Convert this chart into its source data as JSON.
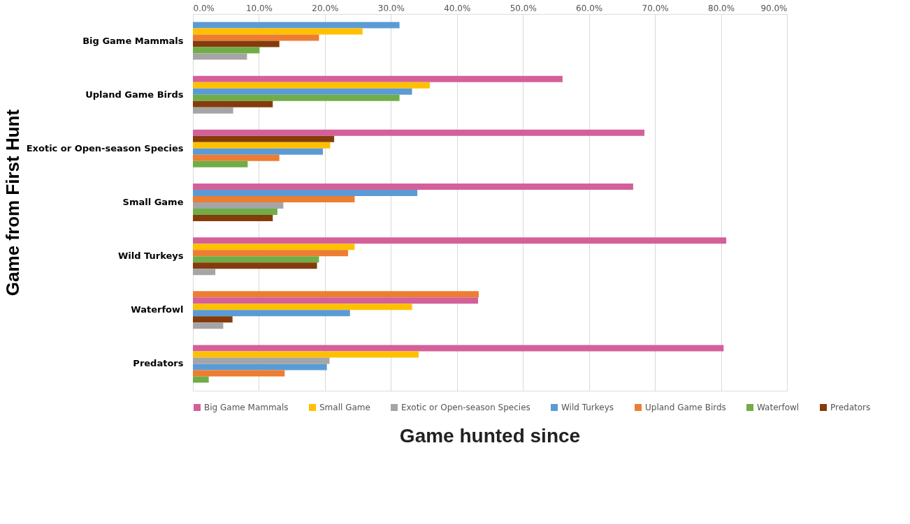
{
  "chart_data": {
    "type": "bar",
    "orientation": "horizontal",
    "xlabel": "Game hunted since",
    "ylabel": "Game from First Hunt",
    "categories": [
      "Big Game Mammals",
      "Upland Game Birds",
      "Exotic or Open-season Species",
      "Small Game",
      "Wild Turkeys",
      "Waterfowl",
      "Predators"
    ],
    "series": [
      {
        "name": "Big Game Mammals",
        "color": "#d4609a",
        "values": [
          null,
          56.0,
          68.4,
          66.7,
          80.8,
          43.2,
          80.4
        ]
      },
      {
        "name": "Small Game",
        "color": "#ffc000",
        "values": [
          25.7,
          35.9,
          20.8,
          null,
          24.5,
          33.2,
          34.2
        ]
      },
      {
        "name": "Exotic or Open-season Species",
        "color": "#a5a5a5",
        "values": [
          8.2,
          6.1,
          null,
          13.7,
          3.4,
          4.6,
          20.7
        ]
      },
      {
        "name": "Wild Turkeys",
        "color": "#5b9bd5",
        "values": [
          31.3,
          33.2,
          19.7,
          34.0,
          null,
          23.8,
          20.3
        ]
      },
      {
        "name": "Upland Game Birds",
        "color": "#ed7d31",
        "values": [
          19.1,
          null,
          13.1,
          24.5,
          23.5,
          43.3,
          13.9
        ]
      },
      {
        "name": "Waterfowl",
        "color": "#70ad47",
        "values": [
          10.1,
          31.3,
          8.3,
          12.8,
          19.1,
          null,
          2.4
        ]
      },
      {
        "name": "Predators",
        "color": "#843c0c",
        "values": [
          13.1,
          12.1,
          21.4,
          12.1,
          18.8,
          6.0,
          null
        ]
      }
    ],
    "xlim": [
      0,
      90
    ],
    "xticks": [
      {
        "value": 0,
        "label": "0.0%"
      },
      {
        "value": 10,
        "label": "10.0%"
      },
      {
        "value": 20,
        "label": "20.0%"
      },
      {
        "value": 30,
        "label": "30.0%"
      },
      {
        "value": 40,
        "label": "40.0%"
      },
      {
        "value": 50,
        "label": "50.0%"
      },
      {
        "value": 60,
        "label": "60.0%"
      },
      {
        "value": 70,
        "label": "70.0%"
      },
      {
        "value": 80,
        "label": "80.0%"
      },
      {
        "value": 90,
        "label": "90.0%"
      }
    ],
    "grid": "x",
    "legend": "bottom"
  }
}
